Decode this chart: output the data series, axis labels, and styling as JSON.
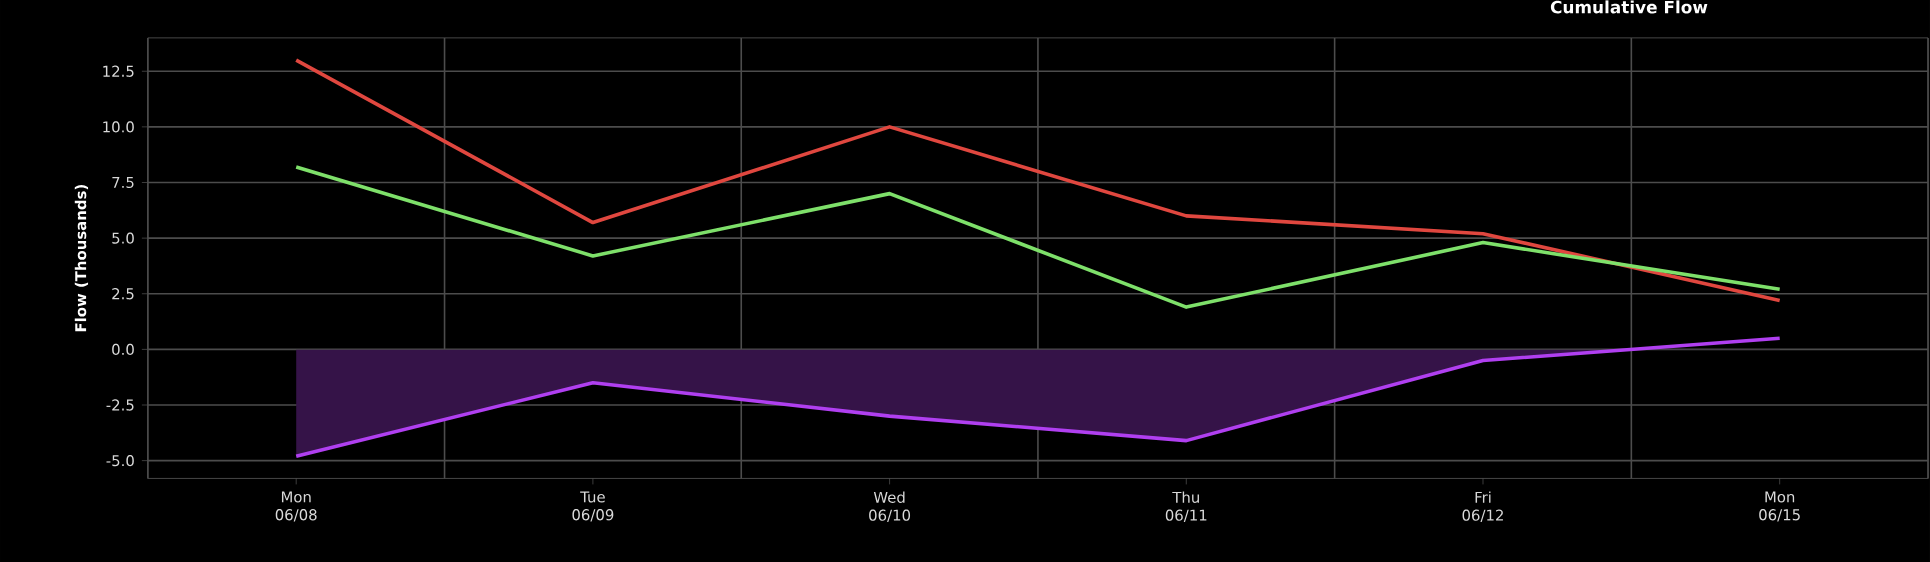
{
  "chart_data": {
    "type": "line",
    "title": "Cumulative Flow",
    "ylabel": "Flow (Thousands)",
    "categories": [
      "Mon 06/08",
      "Tue 06/09",
      "Wed 06/10",
      "Thu 06/11",
      "Fri 06/12",
      "Mon 06/15"
    ],
    "series": [
      {
        "color": "#e0473f",
        "values": [
          13.0,
          5.7,
          10.0,
          6.0,
          5.2,
          2.2
        ]
      },
      {
        "color": "#7ee06a",
        "values": [
          8.2,
          4.2,
          7.0,
          1.9,
          4.8,
          2.7
        ]
      },
      {
        "type": "area",
        "color": "#b03ff0",
        "values": [
          -4.8,
          -1.5,
          -3.0,
          -4.1,
          -0.5,
          0.5
        ]
      }
    ],
    "ylim": [
      -5.8,
      14.0
    ],
    "yticks": [
      {
        "value": -5,
        "label": "-5.0"
      },
      -2.5,
      {
        "value": 0,
        "label": "0.0"
      },
      2.5,
      {
        "value": 5,
        "label": "5.0"
      },
      7.5,
      {
        "value": 10,
        "label": "10.0"
      },
      12.5
    ],
    "grid": true
  }
}
